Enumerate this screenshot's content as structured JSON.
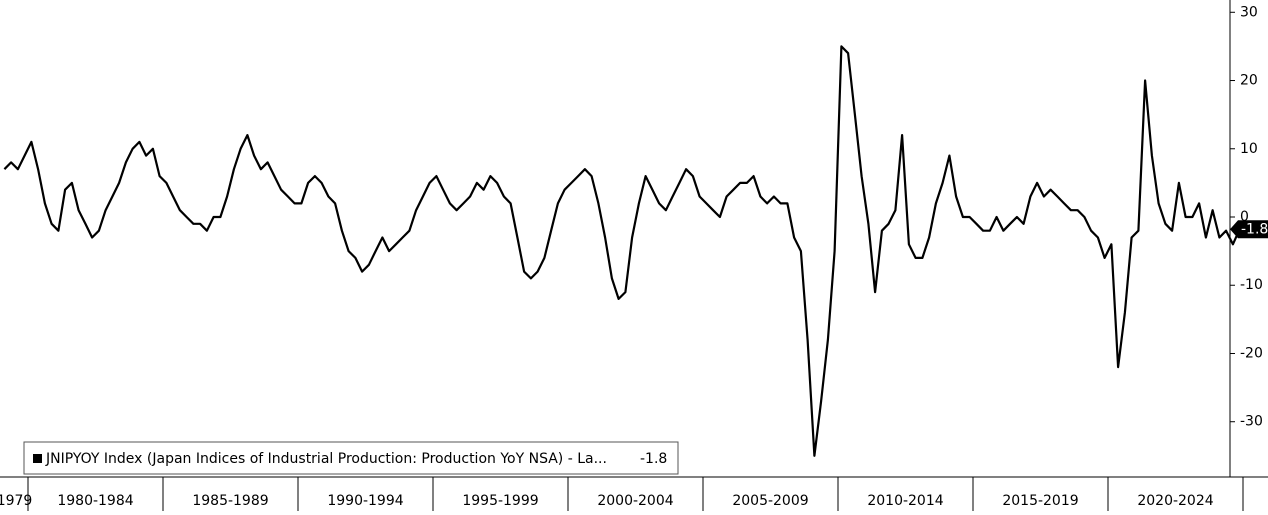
{
  "chart_data": {
    "type": "line",
    "periods": [
      "1979",
      "1980-1984",
      "1985-1989",
      "1990-1994",
      "1995-1999",
      "2000-2004",
      "2005-2009",
      "2010-2014",
      "2015-2019",
      "2020-2024"
    ],
    "series": [
      {
        "name": "JNIPYOY Index (Japan Indices of Industrial Production: Production YoY NSA) - La...",
        "color": "#000000",
        "values": [
          7,
          8,
          7,
          9,
          11,
          7,
          2,
          -1,
          -2,
          4,
          5,
          1,
          -1,
          -3,
          -2,
          1,
          3,
          5,
          8,
          10,
          11,
          9,
          10,
          6,
          5,
          3,
          1,
          0,
          -1,
          -1,
          -2,
          0,
          0,
          3,
          7,
          10,
          12,
          9,
          7,
          8,
          6,
          4,
          3,
          2,
          2,
          5,
          6,
          5,
          3,
          2,
          -2,
          -5,
          -6,
          -8,
          -7,
          -5,
          -3,
          -5,
          -4,
          -3,
          -2,
          1,
          3,
          5,
          6,
          4,
          2,
          1,
          2,
          3,
          5,
          4,
          6,
          5,
          3,
          2,
          -3,
          -8,
          -9,
          -8,
          -6,
          -2,
          2,
          4,
          5,
          6,
          7,
          6,
          2,
          -3,
          -9,
          -12,
          -11,
          -3,
          2,
          6,
          4,
          2,
          1,
          3,
          5,
          7,
          6,
          3,
          2,
          1,
          0,
          3,
          4,
          5,
          5,
          6,
          3,
          2,
          3,
          2,
          2,
          -3,
          -5,
          -18,
          -35,
          -27,
          -18,
          -5,
          25,
          24,
          15,
          6,
          -1,
          -11,
          -2,
          -1,
          1,
          12,
          -4,
          -6,
          -6,
          -3,
          2,
          5,
          9,
          3,
          0,
          0,
          -1,
          -2,
          -2,
          0,
          -2,
          -1,
          0,
          -1,
          3,
          5,
          3,
          4,
          3,
          2,
          1,
          1,
          0,
          -2,
          -3,
          -6,
          -4,
          -22,
          -14,
          -3,
          -2,
          20,
          9,
          2,
          -1,
          -2,
          5,
          0,
          0,
          2,
          -3,
          1,
          -3,
          -2,
          -4,
          -1.8
        ]
      }
    ],
    "last_value": -1.8,
    "ylim": [
      -38.1,
      31.8
    ],
    "yticks": [
      -30,
      -20,
      -10,
      0,
      10,
      20,
      30
    ]
  }
}
